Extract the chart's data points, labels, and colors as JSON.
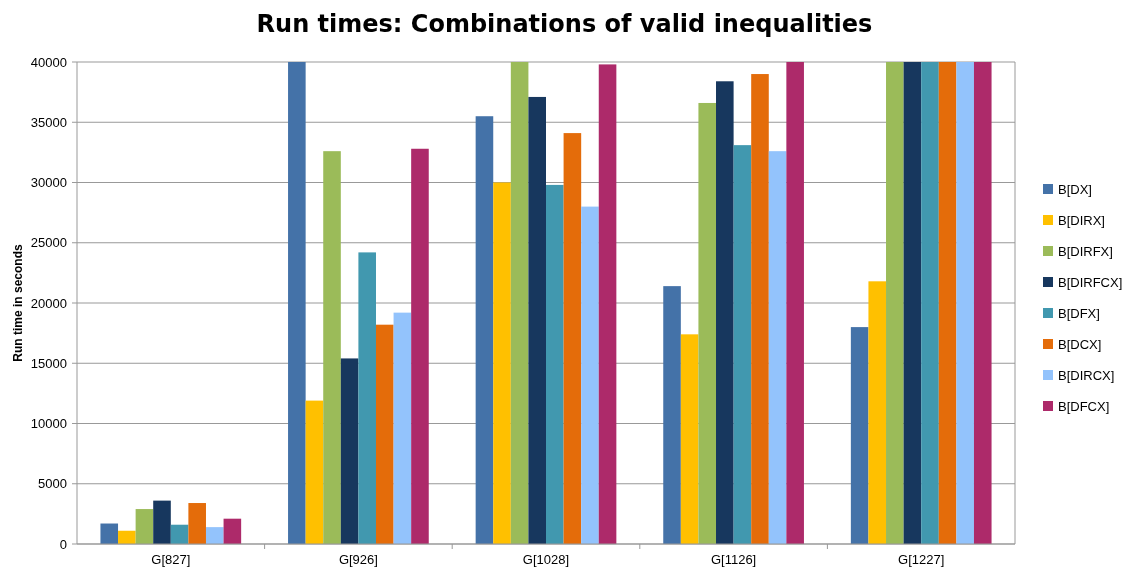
{
  "chart_data": {
    "type": "bar",
    "title": "Run times: Combinations of valid inequalities",
    "ylabel": "Run time in seconds",
    "categories": [
      "G[827]",
      "G[926]",
      "G[1028]",
      "G[1126]",
      "G[1227]"
    ],
    "series": [
      {
        "name": "B[DX]",
        "color": "#4472a8",
        "values": [
          1700,
          40000,
          35500,
          21400,
          18000
        ]
      },
      {
        "name": "B[DIRX]",
        "color": "#ffc000",
        "values": [
          1100,
          11900,
          30000,
          17400,
          21800
        ]
      },
      {
        "name": "B[DIRFX]",
        "color": "#9bbb59",
        "values": [
          2900,
          32600,
          40000,
          36600,
          40000
        ]
      },
      {
        "name": "B[DIRFCX]",
        "color": "#17375e",
        "values": [
          3600,
          15400,
          37100,
          38400,
          40000
        ]
      },
      {
        "name": "B[DFX]",
        "color": "#4198af",
        "values": [
          1600,
          24200,
          29800,
          33100,
          40000
        ]
      },
      {
        "name": "B[DCX]",
        "color": "#e46c0a",
        "values": [
          3400,
          18200,
          34100,
          39000,
          40000
        ]
      },
      {
        "name": "B[DIRCX]",
        "color": "#93c3fc",
        "values": [
          1400,
          19200,
          28000,
          32600,
          40000
        ]
      },
      {
        "name": "B[DFCX]",
        "color": "#ad2a6a",
        "values": [
          2100,
          32800,
          39800,
          40000,
          40000
        ]
      }
    ],
    "ylim": [
      0,
      40000
    ],
    "yticks": [
      0,
      5000,
      10000,
      15000,
      20000,
      25000,
      30000,
      35000,
      40000
    ],
    "grid": "y",
    "legend": "right"
  }
}
